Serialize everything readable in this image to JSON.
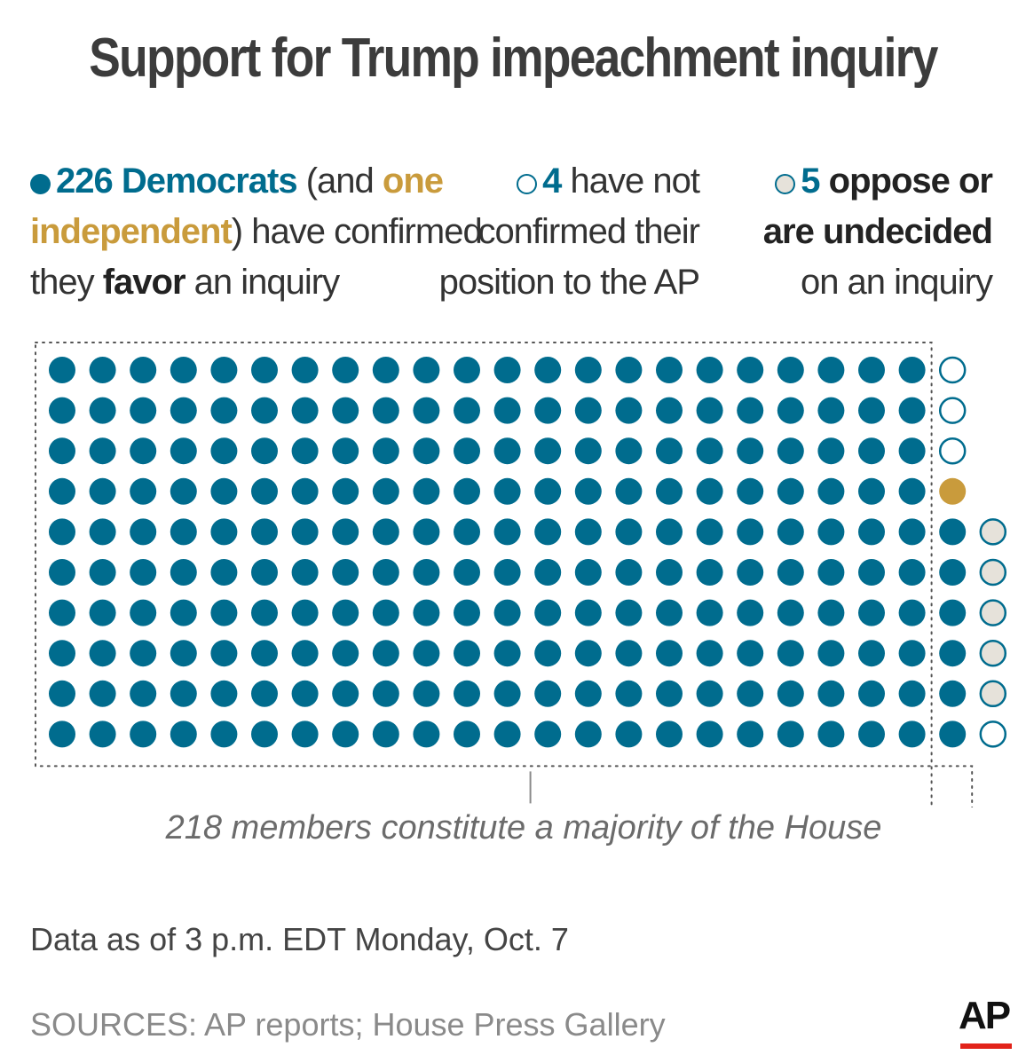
{
  "title": "Support for Trump impeachment inquiry",
  "legend": {
    "favor": {
      "count": "226 Democrats",
      "paren_open": " (and ",
      "independent": "one independent",
      "paren_close": ") have confirmed",
      "line3_pre": "they ",
      "favor_word": "favor",
      "line3_post": " an inquiry"
    },
    "unconfirmed": {
      "count": "4",
      "line1_post": " have not",
      "line2": "confirmed their",
      "line3": "position to the AP"
    },
    "oppose": {
      "count": "5",
      "line1_post": " oppose or",
      "line2": "are undecided",
      "line3": "on an inquiry"
    }
  },
  "majority_note": "218 members constitute a majority of the House",
  "data_as_of": "Data as of 3 p.m. EDT Monday, Oct. 7",
  "sources": "SOURCES: AP reports; House Press Gallery",
  "logo_text": "AP",
  "colors": {
    "democrat": "#006c8e",
    "independent": "#c99b3c",
    "unconfirmed_fill": "#ffffff",
    "oppose_fill": "#e6e2da",
    "majority_box": "#555555"
  },
  "chart_data": {
    "type": "dot-matrix",
    "title": "Support for Trump impeachment inquiry",
    "rows": 10,
    "series": [
      {
        "name": "Democrats favor an inquiry",
        "value": 226
      },
      {
        "name": "Independent favors an inquiry",
        "value": 1
      },
      {
        "name": "Have not confirmed their position",
        "value": 4
      },
      {
        "name": "Oppose or are undecided",
        "value": 5
      }
    ],
    "majority_threshold": 218,
    "annotation": "218 members constitute a majority of the House"
  }
}
